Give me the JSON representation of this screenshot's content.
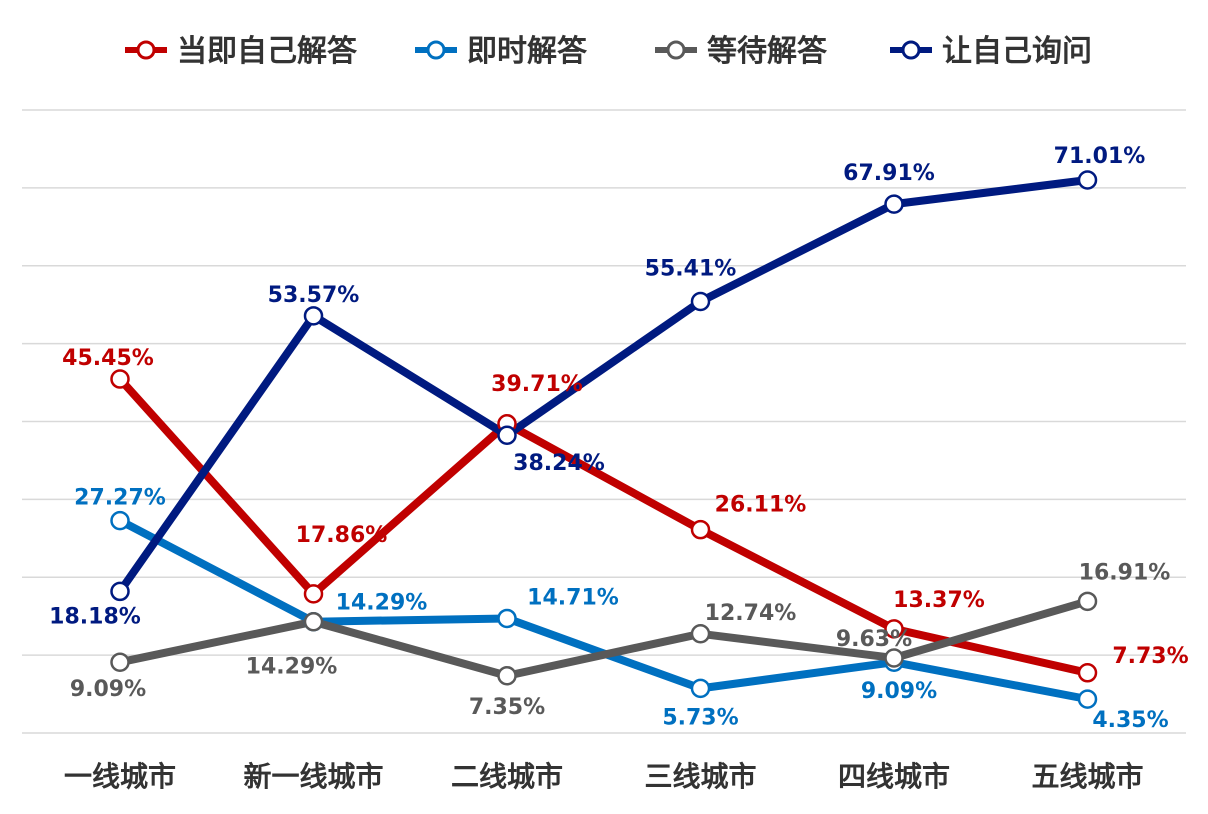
{
  "chart_data": {
    "type": "line",
    "categories": [
      "一线城市",
      "新一线城市",
      "二线城市",
      "三线城市",
      "四线城市",
      "五线城市"
    ],
    "series": [
      {
        "name": "当即自己解答",
        "color": "#C00000",
        "values": [
          45.45,
          17.86,
          39.71,
          26.11,
          13.37,
          7.73
        ],
        "labels": [
          "45.45%",
          "17.86%",
          "39.71%",
          "26.11%",
          "13.37%",
          "7.73%"
        ]
      },
      {
        "name": "即时解答",
        "color": "#0070C0",
        "values": [
          27.27,
          14.29,
          14.71,
          5.73,
          9.09,
          4.35
        ],
        "labels": [
          "27.27%",
          "14.29%",
          "14.71%",
          "5.73%",
          "9.09%",
          "4.35%"
        ]
      },
      {
        "name": "等待解答",
        "color": "#595959",
        "values": [
          9.09,
          14.29,
          7.35,
          12.74,
          9.63,
          16.91
        ],
        "labels": [
          "9.09%",
          "14.29%",
          "7.35%",
          "12.74%",
          "9.63%",
          "16.91%"
        ]
      },
      {
        "name": "让自己询问",
        "color": "#001A80",
        "values": [
          18.18,
          53.57,
          38.24,
          55.41,
          67.91,
          71.01
        ],
        "labels": [
          "18.18%",
          "53.57%",
          "38.24%",
          "55.41%",
          "67.91%",
          "71.01%"
        ]
      }
    ],
    "ylim": [
      0,
      80
    ],
    "grid": true,
    "legend_position": "top-center"
  }
}
